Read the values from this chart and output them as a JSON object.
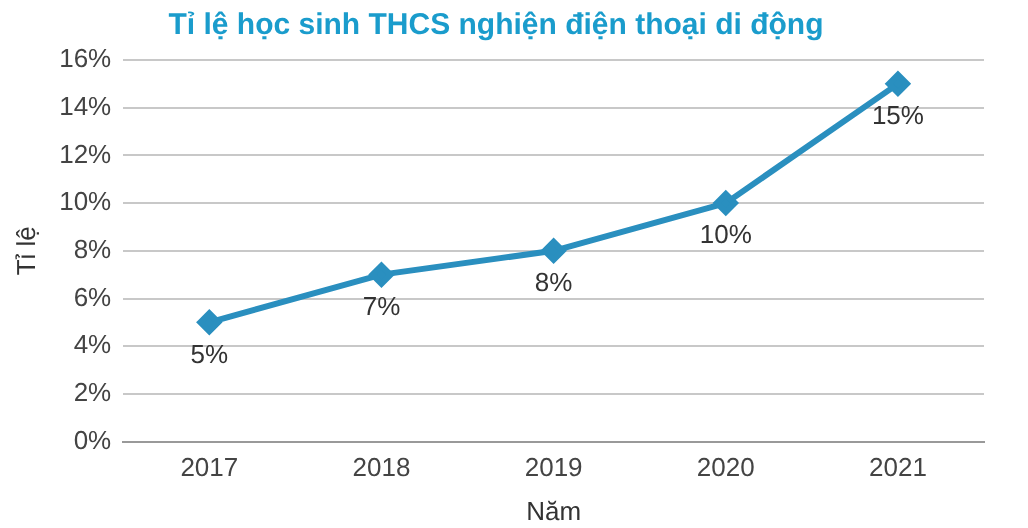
{
  "chart_data": {
    "type": "line",
    "title": "Tỉ lệ học sinh THCS nghiện điện thoại di động",
    "xlabel": "Năm",
    "ylabel": "Tỉ lệ",
    "categories": [
      "2017",
      "2018",
      "2019",
      "2020",
      "2021"
    ],
    "series": [
      {
        "color": "#2a8fbf",
        "values": [
          5,
          7,
          8,
          10,
          15
        ],
        "value_labels": [
          "5%",
          "7%",
          "8%",
          "10%",
          "15%"
        ]
      }
    ],
    "ylim": [
      0,
      16
    ],
    "yticks": [
      {
        "value": 0,
        "label": "0%"
      },
      {
        "value": 2,
        "label": "2%"
      },
      {
        "value": 4,
        "label": "4%"
      },
      {
        "value": 6,
        "label": "6%"
      },
      {
        "value": 8,
        "label": "8%"
      },
      {
        "value": 10,
        "label": "10%"
      },
      {
        "value": 12,
        "label": "12%"
      },
      {
        "value": 14,
        "label": "14%"
      },
      {
        "value": 16,
        "label": "16%"
      }
    ],
    "grid": "y",
    "legend": false,
    "marker": "diamond",
    "line_style": "solid"
  }
}
